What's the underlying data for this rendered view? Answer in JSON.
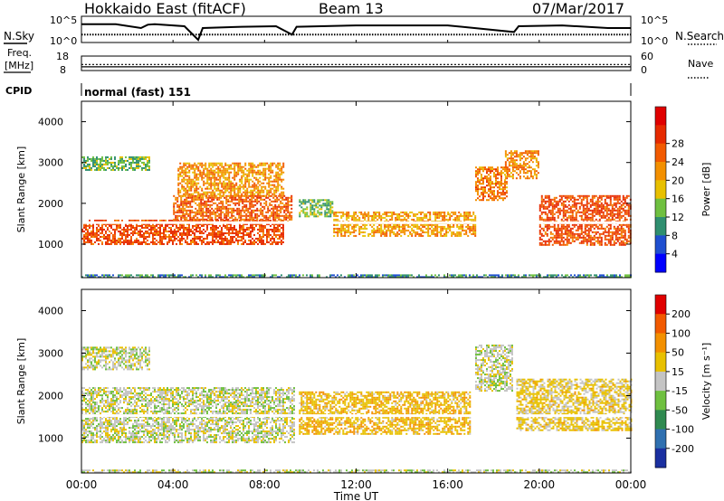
{
  "header": {
    "station": "Hokkaido East (fitACF)",
    "beam": "Beam 13",
    "date": "07/Mar/2017"
  },
  "side_labels": {
    "nsky": "N.Sky",
    "nsearch": "N.Search",
    "freq_line1": "Freq.",
    "freq_line2": "[MHz]",
    "nave": "Nave",
    "cpid": "CPID",
    "cpid_value": "normal (fast) 151"
  },
  "chart_data": [
    {
      "type": "line",
      "panel": "noise",
      "left_ticks": [
        "10^5",
        "10^0"
      ],
      "right_ticks": [
        "10^5",
        "10^0"
      ],
      "series": [
        {
          "name": "N.Sky",
          "style": "solid",
          "x_hours": [
            0,
            1.5,
            2.6,
            2.9,
            3.2,
            4.5,
            5.1,
            5.3,
            7.0,
            8.5,
            9.2,
            9.4,
            12,
            16,
            18.9,
            19.1,
            21,
            23,
            24
          ],
          "level": [
            0.7,
            0.7,
            0.55,
            0.68,
            0.7,
            0.62,
            0.1,
            0.55,
            0.6,
            0.62,
            0.3,
            0.6,
            0.65,
            0.65,
            0.4,
            0.62,
            0.65,
            0.55,
            0.55
          ]
        },
        {
          "name": "N.Search",
          "style": "dotted",
          "level": 0.3
        }
      ]
    },
    {
      "type": "line",
      "panel": "frequency",
      "left_ticks": [
        "18",
        "8"
      ],
      "right_ticks": [
        "60",
        "0"
      ],
      "series": [
        {
          "name": "Freq.",
          "style": "solid",
          "value_mhz": 10.6
        },
        {
          "name": "Nave",
          "style": "dotted",
          "value": 25
        }
      ]
    },
    {
      "type": "heatmap",
      "panel": "power",
      "x_ticks": [
        "00:00",
        "04:00",
        "08:00",
        "12:00",
        "16:00",
        "20:00",
        "00:00"
      ],
      "xlim_hours": [
        0,
        24
      ],
      "ylabel": "Slant Range [km]",
      "y_ticks": [
        1000,
        2000,
        3000,
        4000
      ],
      "ylim_km": [
        180,
        4500
      ],
      "colorbar_label": "Power [dB]",
      "colorbar_ticks": [
        4,
        8,
        12,
        16,
        20,
        24,
        28
      ],
      "colorbar_colors": [
        "#0000ff",
        "#1f4fd0",
        "#2f8f70",
        "#6fc040",
        "#e8c000",
        "#f39000",
        "#f25a00",
        "#e62a00",
        "#e00000"
      ],
      "regions": [
        {
          "t": [
            0.0,
            8.8
          ],
          "r": [
            1000,
            1600
          ],
          "v": 28
        },
        {
          "t": [
            4.0,
            9.2
          ],
          "r": [
            1550,
            2200
          ],
          "v": 26
        },
        {
          "t": [
            4.2,
            8.8
          ],
          "r": [
            2200,
            3000
          ],
          "v": 22
        },
        {
          "t": [
            0.0,
            3.0
          ],
          "r": [
            2800,
            3150
          ],
          "v": 13
        },
        {
          "t": [
            0.0,
            24.0
          ],
          "r": [
            180,
            260
          ],
          "v": 10
        },
        {
          "t": [
            9.5,
            11.0
          ],
          "r": [
            1700,
            2100
          ],
          "v": 13
        },
        {
          "t": [
            11.0,
            17.2
          ],
          "r": [
            1200,
            1800
          ],
          "v": 21
        },
        {
          "t": [
            17.2,
            18.6
          ],
          "r": [
            2100,
            2900
          ],
          "v": 24
        },
        {
          "t": [
            20.0,
            24.0
          ],
          "r": [
            1000,
            2200
          ],
          "v": 28
        },
        {
          "t": [
            18.5,
            20.0
          ],
          "r": [
            2600,
            3300
          ],
          "v": 23
        }
      ]
    },
    {
      "type": "heatmap",
      "panel": "velocity",
      "x_ticks": [
        "00:00",
        "04:00",
        "08:00",
        "12:00",
        "16:00",
        "20:00",
        "00:00"
      ],
      "xlim_hours": [
        0,
        24
      ],
      "xlabel": "Time UT",
      "ylabel": "Slant Range [km]",
      "y_ticks": [
        1000,
        2000,
        3000,
        4000
      ],
      "ylim_km": [
        180,
        4500
      ],
      "colorbar_label": "Velocity [m s⁻¹]",
      "colorbar_ticks": [
        200,
        100,
        50,
        15,
        -15,
        -50,
        -100,
        -200
      ],
      "colorbar_colors": [
        "#1a2fa0",
        "#2f70b0",
        "#2f8a50",
        "#6fc040",
        "#c4c4c4",
        "#e8c000",
        "#f39000",
        "#f25a00",
        "#e00000"
      ],
      "regions": [
        {
          "t": [
            0.0,
            9.3
          ],
          "r": [
            900,
            2200
          ],
          "v": 0
        },
        {
          "t": [
            0.0,
            3.0
          ],
          "r": [
            2600,
            3150
          ],
          "v": 0
        },
        {
          "t": [
            9.5,
            17.0
          ],
          "r": [
            1100,
            2100
          ],
          "v": 40
        },
        {
          "t": [
            17.2,
            18.8
          ],
          "r": [
            2100,
            3200
          ],
          "v": 0
        },
        {
          "t": [
            19.0,
            24.0
          ],
          "r": [
            1200,
            2400
          ],
          "v": 25
        },
        {
          "t": [
            0.0,
            24.0
          ],
          "r": [
            180,
            260
          ],
          "v": 0
        }
      ]
    }
  ]
}
